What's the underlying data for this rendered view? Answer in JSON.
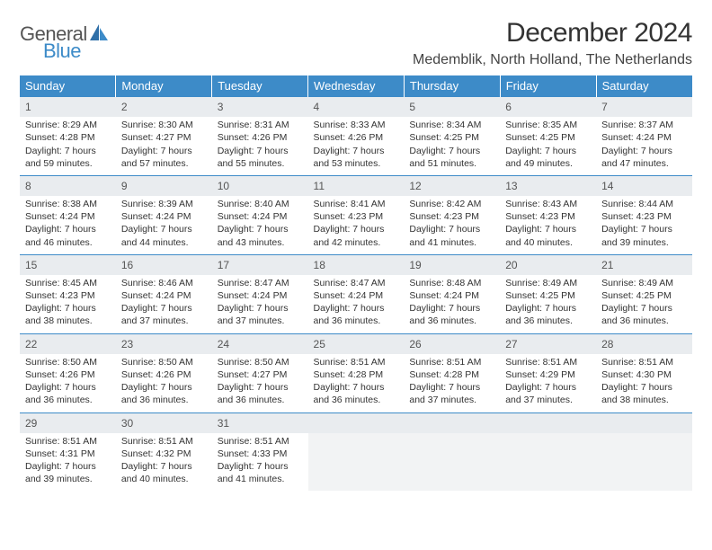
{
  "brand": {
    "word1": "General",
    "word2": "Blue"
  },
  "title": "December 2024",
  "location": "Medemblik, North Holland, The Netherlands",
  "colors": {
    "header_bg": "#3d8bc8",
    "header_text": "#ffffff",
    "daynum_bg": "#e9ecef",
    "row_border": "#3d8bc8",
    "text": "#333333",
    "brand_blue": "#3d8bc8",
    "brand_gray": "#555555"
  },
  "days_of_week": [
    "Sunday",
    "Monday",
    "Tuesday",
    "Wednesday",
    "Thursday",
    "Friday",
    "Saturday"
  ],
  "weeks": [
    [
      {
        "n": "1",
        "sr": "Sunrise: 8:29 AM",
        "ss": "Sunset: 4:28 PM",
        "d1": "Daylight: 7 hours",
        "d2": "and 59 minutes."
      },
      {
        "n": "2",
        "sr": "Sunrise: 8:30 AM",
        "ss": "Sunset: 4:27 PM",
        "d1": "Daylight: 7 hours",
        "d2": "and 57 minutes."
      },
      {
        "n": "3",
        "sr": "Sunrise: 8:31 AM",
        "ss": "Sunset: 4:26 PM",
        "d1": "Daylight: 7 hours",
        "d2": "and 55 minutes."
      },
      {
        "n": "4",
        "sr": "Sunrise: 8:33 AM",
        "ss": "Sunset: 4:26 PM",
        "d1": "Daylight: 7 hours",
        "d2": "and 53 minutes."
      },
      {
        "n": "5",
        "sr": "Sunrise: 8:34 AM",
        "ss": "Sunset: 4:25 PM",
        "d1": "Daylight: 7 hours",
        "d2": "and 51 minutes."
      },
      {
        "n": "6",
        "sr": "Sunrise: 8:35 AM",
        "ss": "Sunset: 4:25 PM",
        "d1": "Daylight: 7 hours",
        "d2": "and 49 minutes."
      },
      {
        "n": "7",
        "sr": "Sunrise: 8:37 AM",
        "ss": "Sunset: 4:24 PM",
        "d1": "Daylight: 7 hours",
        "d2": "and 47 minutes."
      }
    ],
    [
      {
        "n": "8",
        "sr": "Sunrise: 8:38 AM",
        "ss": "Sunset: 4:24 PM",
        "d1": "Daylight: 7 hours",
        "d2": "and 46 minutes."
      },
      {
        "n": "9",
        "sr": "Sunrise: 8:39 AM",
        "ss": "Sunset: 4:24 PM",
        "d1": "Daylight: 7 hours",
        "d2": "and 44 minutes."
      },
      {
        "n": "10",
        "sr": "Sunrise: 8:40 AM",
        "ss": "Sunset: 4:24 PM",
        "d1": "Daylight: 7 hours",
        "d2": "and 43 minutes."
      },
      {
        "n": "11",
        "sr": "Sunrise: 8:41 AM",
        "ss": "Sunset: 4:23 PM",
        "d1": "Daylight: 7 hours",
        "d2": "and 42 minutes."
      },
      {
        "n": "12",
        "sr": "Sunrise: 8:42 AM",
        "ss": "Sunset: 4:23 PM",
        "d1": "Daylight: 7 hours",
        "d2": "and 41 minutes."
      },
      {
        "n": "13",
        "sr": "Sunrise: 8:43 AM",
        "ss": "Sunset: 4:23 PM",
        "d1": "Daylight: 7 hours",
        "d2": "and 40 minutes."
      },
      {
        "n": "14",
        "sr": "Sunrise: 8:44 AM",
        "ss": "Sunset: 4:23 PM",
        "d1": "Daylight: 7 hours",
        "d2": "and 39 minutes."
      }
    ],
    [
      {
        "n": "15",
        "sr": "Sunrise: 8:45 AM",
        "ss": "Sunset: 4:23 PM",
        "d1": "Daylight: 7 hours",
        "d2": "and 38 minutes."
      },
      {
        "n": "16",
        "sr": "Sunrise: 8:46 AM",
        "ss": "Sunset: 4:24 PM",
        "d1": "Daylight: 7 hours",
        "d2": "and 37 minutes."
      },
      {
        "n": "17",
        "sr": "Sunrise: 8:47 AM",
        "ss": "Sunset: 4:24 PM",
        "d1": "Daylight: 7 hours",
        "d2": "and 37 minutes."
      },
      {
        "n": "18",
        "sr": "Sunrise: 8:47 AM",
        "ss": "Sunset: 4:24 PM",
        "d1": "Daylight: 7 hours",
        "d2": "and 36 minutes."
      },
      {
        "n": "19",
        "sr": "Sunrise: 8:48 AM",
        "ss": "Sunset: 4:24 PM",
        "d1": "Daylight: 7 hours",
        "d2": "and 36 minutes."
      },
      {
        "n": "20",
        "sr": "Sunrise: 8:49 AM",
        "ss": "Sunset: 4:25 PM",
        "d1": "Daylight: 7 hours",
        "d2": "and 36 minutes."
      },
      {
        "n": "21",
        "sr": "Sunrise: 8:49 AM",
        "ss": "Sunset: 4:25 PM",
        "d1": "Daylight: 7 hours",
        "d2": "and 36 minutes."
      }
    ],
    [
      {
        "n": "22",
        "sr": "Sunrise: 8:50 AM",
        "ss": "Sunset: 4:26 PM",
        "d1": "Daylight: 7 hours",
        "d2": "and 36 minutes."
      },
      {
        "n": "23",
        "sr": "Sunrise: 8:50 AM",
        "ss": "Sunset: 4:26 PM",
        "d1": "Daylight: 7 hours",
        "d2": "and 36 minutes."
      },
      {
        "n": "24",
        "sr": "Sunrise: 8:50 AM",
        "ss": "Sunset: 4:27 PM",
        "d1": "Daylight: 7 hours",
        "d2": "and 36 minutes."
      },
      {
        "n": "25",
        "sr": "Sunrise: 8:51 AM",
        "ss": "Sunset: 4:28 PM",
        "d1": "Daylight: 7 hours",
        "d2": "and 36 minutes."
      },
      {
        "n": "26",
        "sr": "Sunrise: 8:51 AM",
        "ss": "Sunset: 4:28 PM",
        "d1": "Daylight: 7 hours",
        "d2": "and 37 minutes."
      },
      {
        "n": "27",
        "sr": "Sunrise: 8:51 AM",
        "ss": "Sunset: 4:29 PM",
        "d1": "Daylight: 7 hours",
        "d2": "and 37 minutes."
      },
      {
        "n": "28",
        "sr": "Sunrise: 8:51 AM",
        "ss": "Sunset: 4:30 PM",
        "d1": "Daylight: 7 hours",
        "d2": "and 38 minutes."
      }
    ],
    [
      {
        "n": "29",
        "sr": "Sunrise: 8:51 AM",
        "ss": "Sunset: 4:31 PM",
        "d1": "Daylight: 7 hours",
        "d2": "and 39 minutes."
      },
      {
        "n": "30",
        "sr": "Sunrise: 8:51 AM",
        "ss": "Sunset: 4:32 PM",
        "d1": "Daylight: 7 hours",
        "d2": "and 40 minutes."
      },
      {
        "n": "31",
        "sr": "Sunrise: 8:51 AM",
        "ss": "Sunset: 4:33 PM",
        "d1": "Daylight: 7 hours",
        "d2": "and 41 minutes."
      },
      null,
      null,
      null,
      null
    ]
  ]
}
